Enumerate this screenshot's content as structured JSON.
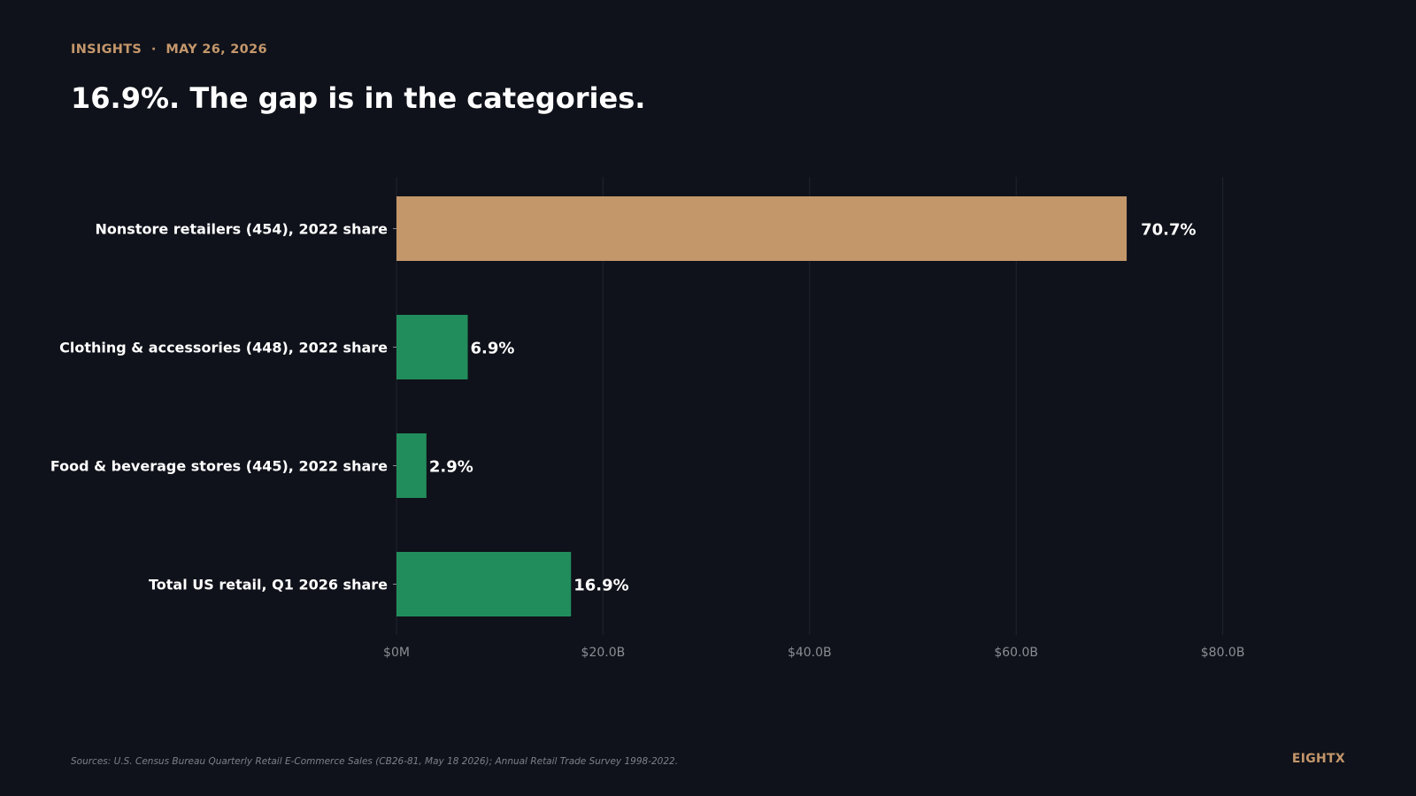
{
  "header": {
    "eyebrow": "INSIGHTS  ·  MAY 26, 2026",
    "headline": "16.9%. The gap is in the categories."
  },
  "colors": {
    "background": "#0f121a",
    "accent": "#c4976b",
    "series": "#218d5c",
    "text": "#ffffff",
    "muted": "#8a8d94",
    "grid": "#20242c"
  },
  "chart_data": {
    "type": "bar",
    "orientation": "horizontal",
    "categories": [
      "Nonstore retailers (454), 2022 share",
      "Clothing & accessories (448), 2022 share",
      "Food & beverage stores (445), 2022 share",
      "Total US retail, Q1 2026 share"
    ],
    "values": [
      70.7,
      6.9,
      2.9,
      16.9
    ],
    "value_labels": [
      "70.7%",
      "6.9%",
      "2.9%",
      "16.9%"
    ],
    "highlight_index": 0,
    "x_ticks": [
      "$0M",
      "$20.0B",
      "$40.0B",
      "$60.0B",
      "$80.0B"
    ],
    "x_tick_values": [
      0,
      20,
      40,
      60,
      80
    ],
    "xlim": [
      0,
      90
    ],
    "grid": "vertical",
    "legend": "none"
  },
  "footer": {
    "source": "Sources: U.S. Census Bureau Quarterly Retail E-Commerce Sales (CB26-81, May 18 2026); Annual Retail Trade Survey 1998-2022.",
    "brand": "EIGHTX"
  }
}
